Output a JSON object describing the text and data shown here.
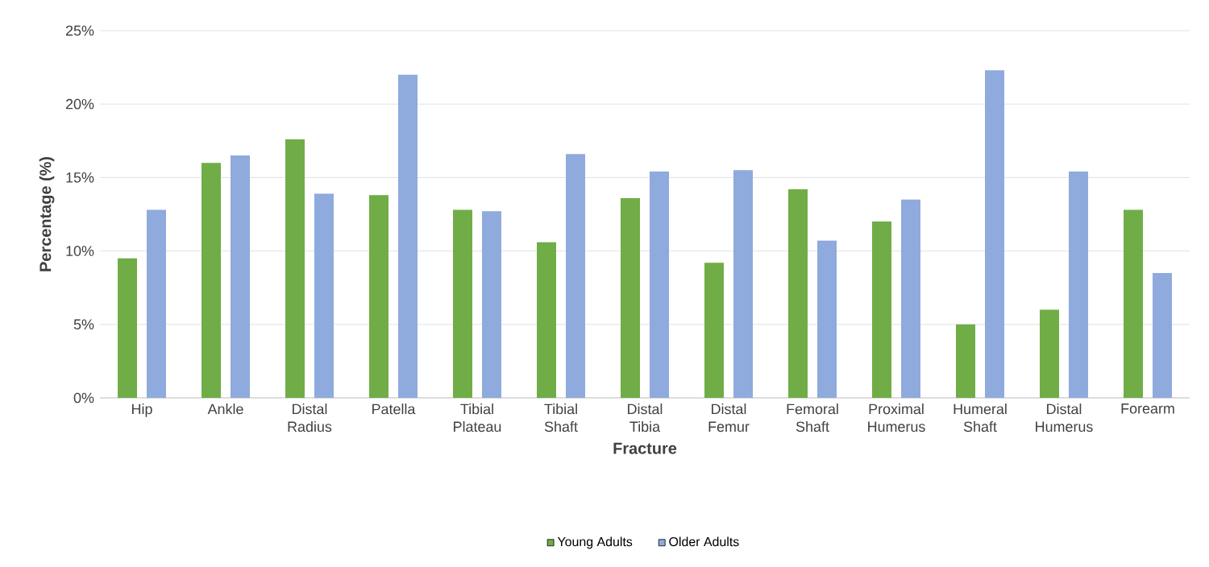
{
  "chart_data": {
    "type": "bar",
    "categories": [
      "Hip",
      "Ankle",
      "Distal Radius",
      "Patella",
      "Tibial Plateau",
      "Tibial Shaft",
      "Distal Tibia",
      "Distal Femur",
      "Femoral Shaft",
      "Proximal Humerus",
      "Humeral Shaft",
      "Distal Humerus",
      "Forearm"
    ],
    "series": [
      {
        "name": "Young Adults",
        "color": "#70ad47",
        "values": [
          9.5,
          16.0,
          17.6,
          13.8,
          12.8,
          10.6,
          13.6,
          9.2,
          14.2,
          12.0,
          5.0,
          6.0,
          12.8
        ]
      },
      {
        "name": "Older Adults",
        "color": "#8faadc",
        "values": [
          12.8,
          16.5,
          13.9,
          22.0,
          12.7,
          16.6,
          15.4,
          15.5,
          10.7,
          13.5,
          22.3,
          15.4,
          8.5
        ]
      }
    ],
    "xlabel": "Fracture",
    "ylabel": "Percentage (%)",
    "ylim": [
      0,
      25
    ],
    "yticks": [
      {
        "value": 0,
        "label": "0%"
      },
      {
        "value": 5,
        "label": "5%"
      },
      {
        "value": 10,
        "label": "10%"
      },
      {
        "value": 15,
        "label": "15%"
      },
      {
        "value": 20,
        "label": "20%"
      },
      {
        "value": 25,
        "label": "25%"
      }
    ],
    "grid": "y",
    "legend": "bottom"
  }
}
